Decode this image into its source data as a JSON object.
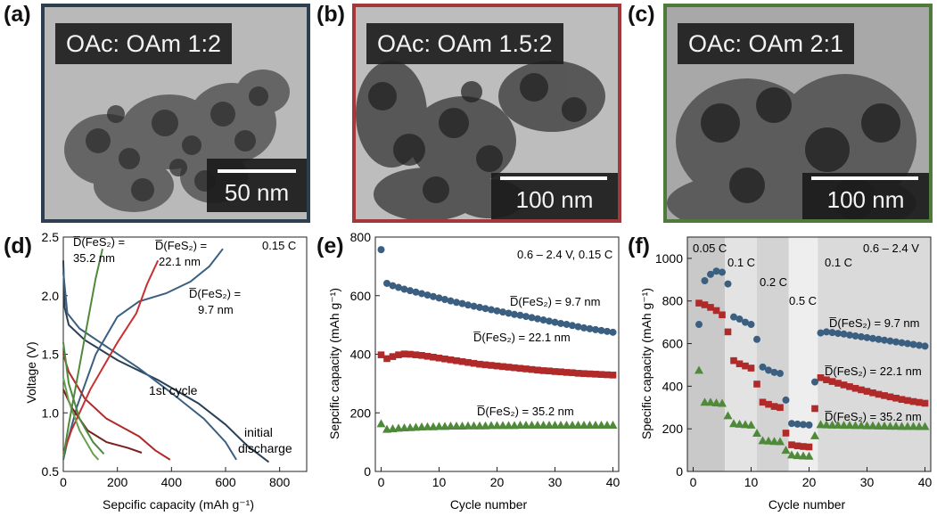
{
  "panel_labels": [
    "(a)",
    "(b)",
    "(c)",
    "(d)",
    "(e)",
    "(f)"
  ],
  "tem_panels": [
    {
      "label": "OAc: OAm 1:2",
      "scale_bar": "50 nm",
      "frame_color": "#2d3e50"
    },
    {
      "label": "OAc: OAm 1.5:2",
      "scale_bar": "100 nm",
      "frame_color": "#a3373a"
    },
    {
      "label": "OAc: OAm 2:1",
      "scale_bar": "100 nm",
      "frame_color": "#4e7a3a"
    }
  ],
  "colors": {
    "blue": "#3b5f80",
    "red": "#b02a2a",
    "green": "#4f8a3a",
    "dark_blue": "#2b3f55",
    "dark_red": "#7a1f1f"
  },
  "chart_data": [
    {
      "type": "line",
      "id": "d",
      "title": "",
      "xlabel": "Sepcific capacity (mAh g⁻¹)",
      "ylabel": "Voltage (V)",
      "xlim": [
        0,
        900
      ],
      "ylim": [
        0.5,
        2.5
      ],
      "xticks": [
        0,
        200,
        400,
        600,
        800
      ],
      "yticks": [
        0.5,
        1.0,
        1.5,
        2.0,
        2.5
      ],
      "xtick_labels": [
        "0",
        "200",
        "400",
        "600",
        "800"
      ],
      "ytick_labels": [
        "0.5",
        "1.0",
        "1.5",
        "2.0",
        "2.5"
      ],
      "annotations": {
        "rate": "0.15 C",
        "first_cycle": "1st cycle",
        "initial_discharge_1": "initial",
        "initial_discharge_2": "discharge",
        "green_label_1": "D̅(FeS₂) =",
        "green_label_2": "35.2 nm",
        "red_label_1": "D̅(FeS₂) =",
        "red_label_2": "22.1 nm",
        "blue_label_1": "D̅(FeS₂) =",
        "blue_label_2": "9.7 nm"
      },
      "series": [
        {
          "color": "#2b3f55",
          "points": [
            [
              0,
              2.3
            ],
            [
              5,
              1.9
            ],
            [
              20,
              1.75
            ],
            [
              80,
              1.62
            ],
            [
              200,
              1.45
            ],
            [
              350,
              1.28
            ],
            [
              500,
              1.08
            ],
            [
              600,
              0.9
            ],
            [
              680,
              0.72
            ],
            [
              760,
              0.58
            ]
          ]
        },
        {
          "color": "#3b5f80",
          "points": [
            [
              0,
              2.2
            ],
            [
              15,
              1.85
            ],
            [
              60,
              1.72
            ],
            [
              150,
              1.58
            ],
            [
              280,
              1.38
            ],
            [
              400,
              1.17
            ],
            [
              520,
              0.95
            ],
            [
              600,
              0.75
            ],
            [
              640,
              0.6
            ]
          ]
        },
        {
          "color": "#3b5f80",
          "points": [
            [
              0,
              0.6
            ],
            [
              15,
              0.75
            ],
            [
              50,
              1.05
            ],
            [
              120,
              1.5
            ],
            [
              200,
              1.82
            ],
            [
              280,
              1.95
            ],
            [
              380,
              2.02
            ],
            [
              470,
              2.12
            ],
            [
              540,
              2.25
            ],
            [
              590,
              2.4
            ]
          ]
        },
        {
          "color": "#b02a2a",
          "points": [
            [
              0,
              1.5
            ],
            [
              20,
              1.35
            ],
            [
              80,
              1.12
            ],
            [
              160,
              0.95
            ],
            [
              280,
              0.8
            ],
            [
              340,
              0.68
            ],
            [
              395,
              0.6
            ]
          ]
        },
        {
          "color": "#7a1f1f",
          "points": [
            [
              0,
              1.2
            ],
            [
              30,
              1.05
            ],
            [
              90,
              0.85
            ],
            [
              160,
              0.75
            ],
            [
              240,
              0.7
            ],
            [
              290,
              0.66
            ]
          ]
        },
        {
          "color": "#c73030",
          "points": [
            [
              0,
              0.65
            ],
            [
              30,
              0.85
            ],
            [
              100,
              1.2
            ],
            [
              200,
              1.6
            ],
            [
              270,
              1.85
            ],
            [
              310,
              2.1
            ],
            [
              350,
              2.3
            ]
          ]
        },
        {
          "color": "#4f8a3a",
          "points": [
            [
              0,
              1.6
            ],
            [
              20,
              1.25
            ],
            [
              60,
              0.95
            ],
            [
              110,
              0.75
            ],
            [
              150,
              0.65
            ]
          ]
        },
        {
          "color": "#6aa04c",
          "points": [
            [
              0,
              1.3
            ],
            [
              20,
              1.1
            ],
            [
              60,
              0.85
            ],
            [
              110,
              0.65
            ],
            [
              130,
              0.6
            ]
          ]
        },
        {
          "color": "#4f8a3a",
          "points": [
            [
              0,
              0.62
            ],
            [
              20,
              0.9
            ],
            [
              60,
              1.4
            ],
            [
              100,
              1.9
            ],
            [
              120,
              2.15
            ],
            [
              145,
              2.4
            ]
          ]
        }
      ]
    },
    {
      "type": "scatter",
      "id": "e",
      "title": "",
      "xlabel": "Cycle number",
      "ylabel": "Sepcific capacity (mAh g⁻¹)",
      "xlim": [
        -1,
        41
      ],
      "ylim": [
        0,
        800
      ],
      "xticks": [
        0,
        10,
        20,
        30,
        40
      ],
      "yticks": [
        0,
        200,
        400,
        600,
        800
      ],
      "xtick_labels": [
        "0",
        "10",
        "20",
        "30",
        "40"
      ],
      "ytick_labels": [
        "0",
        "200",
        "400",
        "600",
        "800"
      ],
      "annotations": {
        "conditions": "0.6 – 2.4 V, 0.15 C"
      },
      "series": [
        {
          "name": "D̅(FeS₂) = 9.7 nm",
          "marker": "circle",
          "color": "#3b5f80",
          "x": [
            0,
            1,
            2,
            3,
            4,
            5,
            6,
            7,
            8,
            9,
            10,
            11,
            12,
            13,
            14,
            15,
            16,
            17,
            18,
            19,
            20,
            21,
            22,
            23,
            24,
            25,
            26,
            27,
            28,
            29,
            30,
            31,
            32,
            33,
            34,
            35,
            36,
            37,
            38,
            39,
            40
          ],
          "y": [
            757,
            642,
            634,
            628,
            622,
            617,
            612,
            607,
            602,
            597,
            592,
            587,
            582,
            577,
            573,
            568,
            564,
            560,
            556,
            552,
            548,
            544,
            540,
            536,
            533,
            529,
            525,
            521,
            517,
            513,
            509,
            505,
            502,
            498,
            494,
            490,
            487,
            484,
            481,
            478,
            475
          ]
        },
        {
          "name": "D̅(FeS₂) = 22.1 nm",
          "marker": "square",
          "color": "#b02a2a",
          "x": [
            0,
            1,
            2,
            3,
            4,
            5,
            6,
            7,
            8,
            9,
            10,
            11,
            12,
            13,
            14,
            15,
            16,
            17,
            18,
            19,
            20,
            21,
            22,
            23,
            24,
            25,
            26,
            27,
            28,
            29,
            30,
            31,
            32,
            33,
            34,
            35,
            36,
            37,
            38,
            39,
            40
          ],
          "y": [
            398,
            385,
            392,
            398,
            401,
            400,
            398,
            396,
            393,
            390,
            387,
            384,
            381,
            378,
            375,
            372,
            369,
            366,
            364,
            362,
            360,
            358,
            356,
            354,
            352,
            350,
            348,
            346,
            344,
            343,
            341,
            340,
            338,
            337,
            335,
            334,
            333,
            332,
            331,
            330,
            329
          ]
        },
        {
          "name": "D̅(FeS₂) = 35.2 nm",
          "marker": "triangle",
          "color": "#4f8a3a",
          "x": [
            0,
            1,
            2,
            3,
            4,
            5,
            6,
            7,
            8,
            9,
            10,
            11,
            12,
            13,
            14,
            15,
            16,
            17,
            18,
            19,
            20,
            21,
            22,
            23,
            24,
            25,
            26,
            27,
            28,
            29,
            30,
            31,
            32,
            33,
            34,
            35,
            36,
            37,
            38,
            39,
            40
          ],
          "y": [
            163,
            144,
            146,
            148,
            149,
            150,
            151,
            152,
            153,
            153,
            154,
            154,
            155,
            155,
            155,
            156,
            156,
            156,
            156,
            157,
            157,
            157,
            157,
            157,
            158,
            158,
            158,
            158,
            158,
            158,
            158,
            158,
            158,
            158,
            158,
            158,
            158,
            158,
            158,
            158,
            158
          ]
        }
      ]
    },
    {
      "type": "scatter",
      "id": "f",
      "title": "",
      "xlabel": "Cycle number",
      "ylabel": "Specific capacity (mAh g⁻¹)",
      "xlim": [
        -1,
        41
      ],
      "ylim": [
        0,
        1100
      ],
      "xticks": [
        0,
        10,
        20,
        30,
        40
      ],
      "yticks": [
        0,
        200,
        400,
        600,
        800,
        1000
      ],
      "xtick_labels": [
        "0",
        "10",
        "20",
        "30",
        "40"
      ],
      "ytick_labels": [
        "0",
        "200",
        "400",
        "600",
        "800",
        "1000"
      ],
      "annotations": {
        "voltage": "0.6 – 2.4 V"
      },
      "rate_bands": [
        {
          "label": "0.05 C",
          "x0": -1,
          "x1": 5.5,
          "shade": "#c9c9c9"
        },
        {
          "label": "0.1 C",
          "x0": 5.5,
          "x1": 11,
          "shade": "#e3e3e3"
        },
        {
          "label": "0.2 C",
          "x0": 11,
          "x1": 16.5,
          "shade": "#d3d3d3"
        },
        {
          "label": "0.5 C",
          "x0": 16.5,
          "x1": 21.5,
          "shade": "#eeeeee"
        },
        {
          "label": "0.1 C",
          "x0": 21.5,
          "x1": 41,
          "shade": "#dadada"
        }
      ],
      "series": [
        {
          "name": "D̅(FeS₂) = 9.7 nm",
          "marker": "circle",
          "color": "#3b5f80",
          "x": [
            1,
            2,
            3,
            4,
            5,
            6,
            7,
            8,
            9,
            10,
            11,
            12,
            13,
            14,
            15,
            16,
            17,
            18,
            19,
            20,
            21,
            22,
            23,
            24,
            25,
            26,
            27,
            28,
            29,
            30,
            31,
            32,
            33,
            34,
            35,
            36,
            37,
            38,
            39,
            40
          ],
          "y": [
            690,
            895,
            925,
            940,
            935,
            880,
            725,
            715,
            700,
            690,
            620,
            490,
            475,
            465,
            460,
            335,
            225,
            222,
            220,
            218,
            420,
            650,
            655,
            652,
            648,
            645,
            640,
            636,
            632,
            628,
            624,
            620,
            616,
            612,
            608,
            604,
            600,
            596,
            592,
            588
          ]
        },
        {
          "name": "D̅(FeS₂) = 22.1 nm",
          "marker": "square",
          "color": "#b02a2a",
          "x": [
            1,
            2,
            3,
            4,
            5,
            6,
            7,
            8,
            9,
            10,
            11,
            12,
            13,
            14,
            15,
            16,
            17,
            18,
            19,
            20,
            21,
            22,
            23,
            24,
            25,
            26,
            27,
            28,
            29,
            30,
            31,
            32,
            33,
            34,
            35,
            36,
            37,
            38,
            39,
            40
          ],
          "y": [
            790,
            782,
            770,
            755,
            735,
            655,
            520,
            505,
            495,
            485,
            410,
            325,
            315,
            305,
            300,
            180,
            125,
            120,
            117,
            115,
            295,
            440,
            430,
            422,
            414,
            406,
            398,
            390,
            383,
            376,
            369,
            362,
            356,
            350,
            344,
            338,
            333,
            328,
            324,
            320
          ]
        },
        {
          "name": "D̅(FeS₂) = 35.2 nm",
          "marker": "triangle",
          "color": "#4f8a3a",
          "x": [
            1,
            2,
            3,
            4,
            5,
            6,
            7,
            8,
            9,
            10,
            11,
            12,
            13,
            14,
            15,
            16,
            17,
            18,
            19,
            20,
            21,
            22,
            23,
            24,
            25,
            26,
            27,
            28,
            29,
            30,
            31,
            32,
            33,
            34,
            35,
            36,
            37,
            38,
            39,
            40
          ],
          "y": [
            475,
            325,
            325,
            322,
            320,
            262,
            225,
            222,
            220,
            218,
            180,
            145,
            143,
            141,
            140,
            100,
            78,
            75,
            73,
            72,
            168,
            220,
            219,
            218,
            218,
            217,
            217,
            216,
            216,
            215,
            215,
            214,
            214,
            213,
            213,
            212,
            212,
            212,
            211,
            211
          ]
        }
      ]
    }
  ]
}
